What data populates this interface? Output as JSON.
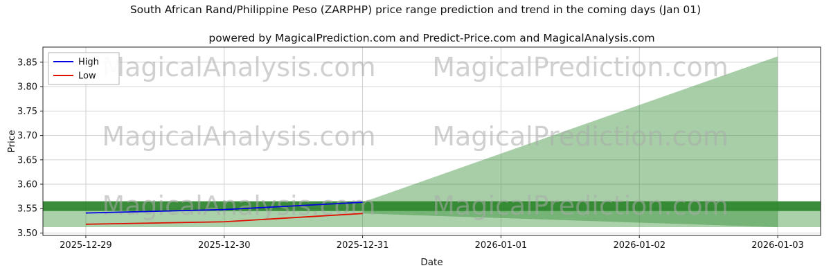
{
  "watermarks": {
    "left_text": "MagicalAnalysis.com",
    "right_text": "MagicalPrediction.com",
    "color": "#aaaaaa"
  },
  "chart_data": {
    "type": "line",
    "title": "South African Rand/Philippine Peso (ZARPHP) price range prediction and trend in the coming days (Jan 01)",
    "subtitle": "powered by MagicalPrediction.com and Predict-Price.com and MagicalAnalysis.com",
    "x": [
      "2025-12-29",
      "2025-12-30",
      "2025-12-31",
      "2026-01-01",
      "2026-01-02",
      "2026-01-03"
    ],
    "xlabel": "Date",
    "ylabel": "Price",
    "ylim": [
      3.495,
      3.881
    ],
    "yticks": [
      3.5,
      3.55,
      3.6,
      3.65,
      3.7,
      3.75,
      3.8,
      3.85
    ],
    "grid": true,
    "legend": {
      "position": "upper-left",
      "entries": [
        {
          "label": "High",
          "color": "#0000e0"
        },
        {
          "label": "Low",
          "color": "#e01000"
        }
      ]
    },
    "series": [
      {
        "name": "High",
        "color": "#0000e0",
        "x": [
          "2025-12-29",
          "2025-12-30",
          "2025-12-31"
        ],
        "values": [
          3.541,
          3.548,
          3.563
        ]
      },
      {
        "name": "Low",
        "color": "#e01000",
        "x": [
          "2025-12-29",
          "2025-12-30",
          "2025-12-31"
        ],
        "values": [
          3.518,
          3.523,
          3.54
        ]
      }
    ],
    "forecast_cone": {
      "x_start": "2025-12-31",
      "x_end": "2026-01-03",
      "upper": [
        3.563,
        3.862
      ],
      "lower": [
        3.54,
        3.512
      ],
      "color": "#2e8b2e",
      "opacity": 0.42
    },
    "bands": [
      {
        "name": "forecast-range-band-light",
        "y0": 3.512,
        "y1": 3.565,
        "color": "#2e8b2e",
        "opacity": 0.4
      },
      {
        "name": "forecast-range-band-dark",
        "y0": 3.545,
        "y1": 3.565,
        "color": "#157515",
        "opacity": 0.75
      }
    ]
  }
}
